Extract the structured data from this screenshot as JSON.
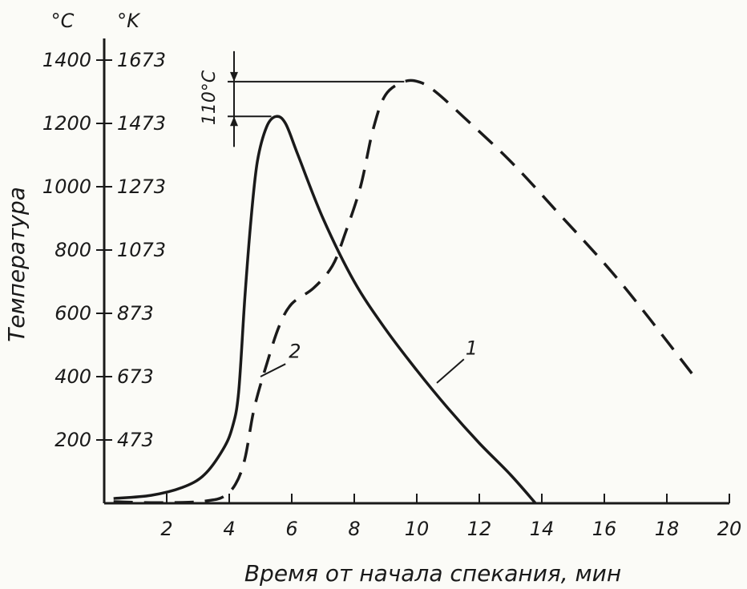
{
  "chart_data": {
    "type": "line",
    "xlabel": "Время от начала спекания, мин",
    "ylabel": "Температура",
    "y_unit_c": "°C",
    "y_unit_k": "°K",
    "xlim": [
      0,
      20
    ],
    "ylim": [
      0,
      1400
    ],
    "x_ticks": [
      "2",
      "4",
      "6",
      "8",
      "10",
      "12",
      "14",
      "16",
      "18",
      "20"
    ],
    "y_ticks_c": [
      "200",
      "400",
      "600",
      "800",
      "1000",
      "1200",
      "1400"
    ],
    "y_ticks_k": [
      "473",
      "673",
      "873",
      "1073",
      "1273",
      "1473",
      "1673"
    ],
    "grid": false,
    "annotation": "110°C",
    "series": [
      {
        "name": "1",
        "style": "solid",
        "points": [
          [
            0.3,
            15
          ],
          [
            1.5,
            25
          ],
          [
            2.5,
            50
          ],
          [
            3.2,
            90
          ],
          [
            3.8,
            170
          ],
          [
            4.1,
            240
          ],
          [
            4.3,
            350
          ],
          [
            4.5,
            650
          ],
          [
            4.7,
            900
          ],
          [
            4.9,
            1080
          ],
          [
            5.2,
            1190
          ],
          [
            5.5,
            1222
          ],
          [
            5.8,
            1200
          ],
          [
            6.2,
            1100
          ],
          [
            7.0,
            900
          ],
          [
            8.0,
            700
          ],
          [
            9.0,
            550
          ],
          [
            10.0,
            420
          ],
          [
            11.0,
            300
          ],
          [
            12.0,
            190
          ],
          [
            13.0,
            90
          ],
          [
            13.8,
            0
          ]
        ]
      },
      {
        "name": "2",
        "style": "dashed",
        "points": [
          [
            0.3,
            5
          ],
          [
            1.5,
            2
          ],
          [
            2.7,
            3
          ],
          [
            3.3,
            8
          ],
          [
            3.8,
            20
          ],
          [
            4.2,
            60
          ],
          [
            4.5,
            140
          ],
          [
            4.8,
            300
          ],
          [
            5.2,
            440
          ],
          [
            5.6,
            560
          ],
          [
            6.0,
            630
          ],
          [
            6.7,
            680
          ],
          [
            7.3,
            750
          ],
          [
            7.7,
            850
          ],
          [
            8.2,
            1000
          ],
          [
            8.6,
            1180
          ],
          [
            9.0,
            1290
          ],
          [
            9.6,
            1332
          ],
          [
            10.1,
            1330
          ],
          [
            10.6,
            1300
          ],
          [
            11.5,
            1220
          ],
          [
            13.0,
            1080
          ],
          [
            14.5,
            920
          ],
          [
            16.5,
            700
          ],
          [
            18.8,
            410
          ]
        ]
      }
    ]
  }
}
